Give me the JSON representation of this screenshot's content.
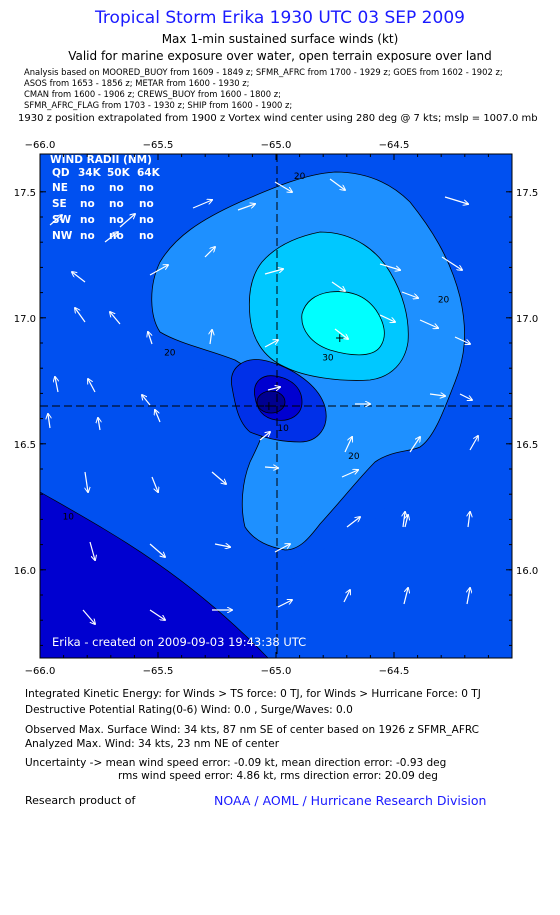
{
  "header": {
    "title": "Tropical Storm Erika 1930 UTC 03 SEP 2009",
    "subtitle": "Max 1-min sustained surface winds (kt)",
    "valid_for": "Valid for marine exposure over water, open terrain exposure over land",
    "sources": [
      "Analysis based on  MOORED_BUOY from 1609 - 1849 z;  SFMR_AFRC from 1700 - 1929 z;  GOES from 1602 - 1902 z;",
      "ASOS from 1653 - 1856 z;  METAR from 1600 - 1930 z;",
      "CMAN from 1600 - 1906 z;  CREWS_BUOY from 1600 - 1800 z;",
      "SFMR_AFRC_FLAG from 1703 - 1930 z;  SHIP from 1600 - 1900 z;"
    ],
    "position_note": "1930 z position extrapolated from 1900 z Vortex wind center using 280 deg @ 7 kts; mslp = 1007.0 mb"
  },
  "chart_data": {
    "type": "contour",
    "xlim": [
      -66.0,
      -64.0
    ],
    "ylim": [
      15.65,
      17.65
    ],
    "x_ticks": [
      -66.0,
      -65.5,
      -65.0,
      -64.5
    ],
    "x_tick_labels": [
      "−66.0",
      "−65.5",
      "−65.0",
      "−64.5"
    ],
    "y_ticks": [
      16.0,
      16.5,
      17.0,
      17.5
    ],
    "y_tick_labels": [
      "16.0",
      "16.5",
      "17.0",
      "17.5"
    ],
    "center": {
      "lon": -65.03,
      "lat": 16.65
    },
    "max_wind_marker": {
      "lon": -64.73,
      "lat": 16.92
    },
    "contour_labels": [
      {
        "text": "20",
        "lon": -64.9,
        "lat": 17.55
      },
      {
        "text": "20",
        "lon": -64.29,
        "lat": 17.06
      },
      {
        "text": "20",
        "lon": -65.45,
        "lat": 16.85
      },
      {
        "text": "30",
        "lon": -64.78,
        "lat": 16.83
      },
      {
        "text": "20",
        "lon": -64.67,
        "lat": 16.44
      },
      {
        "text": "10",
        "lon": -64.97,
        "lat": 16.55
      },
      {
        "text": "10",
        "lon": -65.88,
        "lat": 16.2
      }
    ],
    "wind_radii": {
      "title": "WIND RADII (NM)",
      "columns": [
        "QD",
        "34K",
        "50K",
        "64K"
      ],
      "rows": [
        [
          "NE",
          "no",
          "no",
          "no"
        ],
        [
          "SE",
          "no",
          "no",
          "no"
        ],
        [
          "SW",
          "no",
          "no",
          "no"
        ],
        [
          "NW",
          "no",
          "no",
          "no"
        ]
      ]
    },
    "credit": "Erika - created on 2009-09-03 19:43:38 UTC",
    "colors": {
      "lt10": "#0000d0",
      "c10_20": "#0050f0",
      "c20_30": "#1e90ff",
      "c30_40": "#00c8ff",
      "gt40": "#00ffff",
      "center_core": "#0000e0"
    }
  },
  "footer": {
    "ike": "Integrated Kinetic Energy:  for Winds > TS force: 0 TJ,  for Winds > Hurricane Force: 0 TJ",
    "destructive": "Destructive Potential Rating(0-6)   Wind: 0.0 , Surge/Waves: 0.0",
    "observed_max": "Observed Max. Surface Wind: 34 kts, 87 nm SE of center based on 1926 z SFMR_AFRC",
    "analyzed_max": "Analyzed Max. Wind: 34 kts, 23 nm NE of center",
    "uncertainty_1": "Uncertainty -> mean wind speed error:  -0.09 kt,   mean direction error:  -0.93 deg",
    "uncertainty_2": "rms wind speed error: 4.86 kt,   rms direction error: 20.09 deg",
    "research": "Research product of",
    "noaa": "NOAA / AOML / Hurricane Research Division"
  }
}
